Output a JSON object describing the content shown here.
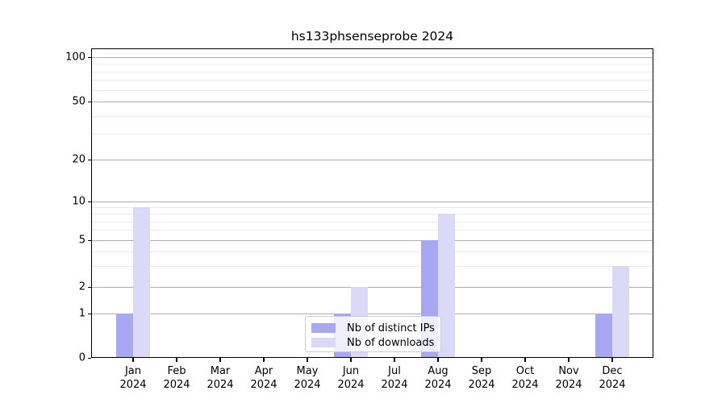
{
  "chart_data": {
    "type": "bar",
    "title": "hs133phsenseprobe 2024",
    "categories": [
      "Jan",
      "Feb",
      "Mar",
      "Apr",
      "May",
      "Jun",
      "Jul",
      "Aug",
      "Sep",
      "Oct",
      "Nov",
      "Dec"
    ],
    "year_label": "2024",
    "series": [
      {
        "name": "Nb of distinct IPs",
        "color": "#a8a8f2",
        "values": [
          1,
          0,
          0,
          0,
          0,
          1,
          0,
          5,
          0,
          0,
          0,
          1
        ]
      },
      {
        "name": "Nb of downloads",
        "color": "#dadaf8",
        "values": [
          9,
          0,
          0,
          0,
          0,
          2,
          0,
          8,
          0,
          0,
          0,
          3
        ]
      }
    ],
    "yticks": [
      "0",
      "1",
      "2",
      "5",
      "10",
      "20",
      "50",
      "100"
    ],
    "yscale": "linear below 1, log-like above (0,1,2,5,10,20,50,100)",
    "ylim": [
      0,
      116
    ],
    "grid": true,
    "legend": {
      "position": "lower center",
      "labels": [
        "Nb of distinct IPs",
        "Nb of downloads"
      ]
    },
    "colors": {
      "grid_major": "#b0b0b0",
      "grid_minor": "#ebebeb",
      "spine": "#000000",
      "text": "#000000"
    }
  }
}
